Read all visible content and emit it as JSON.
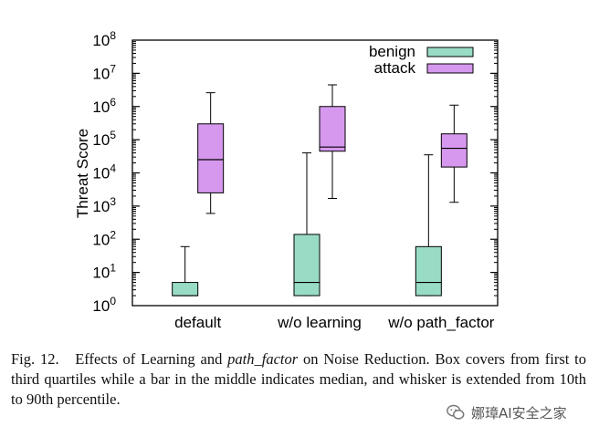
{
  "chart_data": {
    "type": "boxplot",
    "ylabel": "Threat Score",
    "yscale": "log",
    "ylim": [
      1,
      100000000
    ],
    "yticks": [
      {
        "value": 1,
        "base": "10",
        "exp": "0"
      },
      {
        "value": 10,
        "base": "10",
        "exp": "1"
      },
      {
        "value": 100,
        "base": "10",
        "exp": "2"
      },
      {
        "value": 1000,
        "base": "10",
        "exp": "3"
      },
      {
        "value": 10000,
        "base": "10",
        "exp": "4"
      },
      {
        "value": 100000,
        "base": "10",
        "exp": "5"
      },
      {
        "value": 1000000,
        "base": "10",
        "exp": "6"
      },
      {
        "value": 10000000,
        "base": "10",
        "exp": "7"
      },
      {
        "value": 100000000,
        "base": "10",
        "exp": "8"
      }
    ],
    "categories": [
      "default",
      "w/o learning",
      "w/o path_factor"
    ],
    "legend_position": "top-right",
    "series": [
      {
        "name": "benign",
        "color": "#99dcc6",
        "boxes": [
          {
            "p10": 2,
            "q1": 2,
            "median": 2,
            "q3": 5,
            "p90": 60
          },
          {
            "p10": 2,
            "q1": 2,
            "median": 5,
            "q3": 140,
            "p90": 40000
          },
          {
            "p10": 2,
            "q1": 2,
            "median": 5,
            "q3": 60,
            "p90": 35000
          }
        ]
      },
      {
        "name": "attack",
        "color": "#d698ee",
        "boxes": [
          {
            "p10": 600,
            "q1": 2500,
            "median": 25000,
            "q3": 300000,
            "p90": 2600000
          },
          {
            "p10": 1700,
            "q1": 45000,
            "median": 60000,
            "q3": 1000000,
            "p90": 4500000
          },
          {
            "p10": 1300,
            "q1": 15000,
            "median": 55000,
            "q3": 150000,
            "p90": 1100000
          }
        ]
      }
    ]
  },
  "caption": {
    "label": "Fig. 12.",
    "part1": "Effects of Learning and ",
    "italic": "path_factor",
    "part2": " on Noise Reduction. Box covers from first to third quartiles while a bar in the middle indicates median, and whisker is extended from 10th to 90th percentile."
  },
  "watermark": {
    "text": "娜璋AI安全之家",
    "icon": "wechat-icon"
  }
}
